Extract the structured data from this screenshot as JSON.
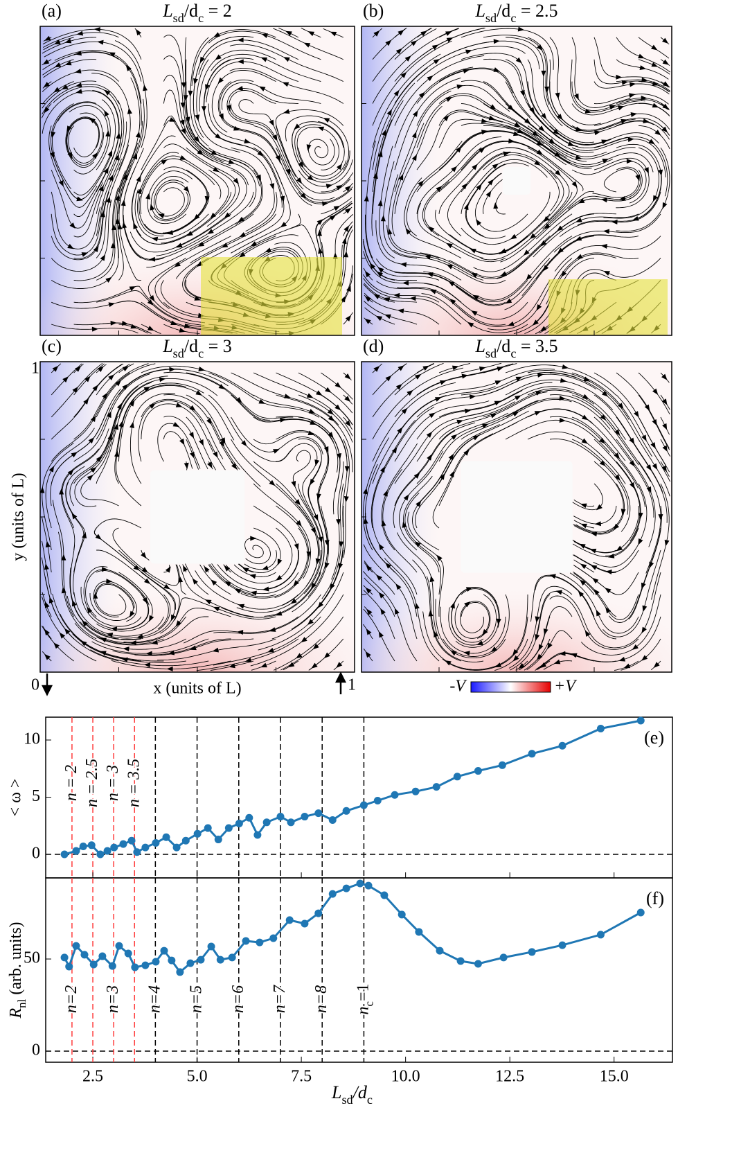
{
  "panels": [
    {
      "label": "(a)",
      "title": [
        "L",
        "sd",
        "/d",
        "c",
        " = 2"
      ],
      "highlight": true,
      "hole": 0
    },
    {
      "label": "(b)",
      "title": [
        "L",
        "sd",
        "/d",
        "c",
        " = 2.5"
      ],
      "highlight": true,
      "hole": 0.09
    },
    {
      "label": "(c)",
      "title": [
        "L",
        "sd",
        "/d",
        "c",
        " = 3"
      ],
      "highlight": false,
      "hole": 0.3
    },
    {
      "label": "(d)",
      "title": [
        "L",
        "sd",
        "/d",
        "c",
        " = 3.5"
      ],
      "highlight": false,
      "hole": 0.36
    }
  ],
  "panel_axes": {
    "y_label": "y (units of L)",
    "x_label": "x (units of L)",
    "y_top": "1",
    "origin": "0",
    "x_right": "1"
  },
  "colorbar": {
    "low": "-V",
    "high": "+V"
  },
  "chart_data": [
    {
      "type": "line",
      "panel_label": "(e)",
      "ylabel": "< ω >",
      "color": "#1f77b4",
      "x": [
        1.82,
        2.1,
        2.27,
        2.47,
        2.68,
        2.85,
        3.01,
        3.23,
        3.43,
        3.56,
        3.76,
        4.01,
        4.26,
        4.51,
        4.73,
        5.01,
        5.26,
        5.51,
        5.76,
        6.01,
        6.25,
        6.45,
        6.67,
        7.0,
        7.25,
        7.58,
        7.91,
        8.25,
        8.58,
        9.0,
        9.33,
        9.74,
        10.24,
        10.74,
        11.24,
        11.74,
        12.32,
        13.03,
        13.76,
        14.68,
        15.64
      ],
      "values": [
        0,
        0.3,
        0.7,
        0.8,
        0,
        0.3,
        0.6,
        0.9,
        1.2,
        0.2,
        0.6,
        1.0,
        1.5,
        0.6,
        1.2,
        1.8,
        2.3,
        1.3,
        2.3,
        2.7,
        3.2,
        1.7,
        2.8,
        3.3,
        2.8,
        3.3,
        3.6,
        3.0,
        3.8,
        4.3,
        4.7,
        5.2,
        5.5,
        5.9,
        6.8,
        7.3,
        7.8,
        8.8,
        9.5,
        11.0,
        11.7
      ],
      "xlim": [
        1.37,
        16.4
      ],
      "ylim": [
        -2.06,
        12
      ],
      "yticks": [
        0,
        5,
        10
      ],
      "hline": 0,
      "vlines": [
        {
          "x": 2,
          "label": "n = 2",
          "color": "#ff3b3b"
        },
        {
          "x": 2.5,
          "label": "n = 2.5",
          "color": "#ff3b3b"
        },
        {
          "x": 3,
          "label": "n = 3",
          "color": "#ff3b3b"
        },
        {
          "x": 3.5,
          "label": "n = 3.5",
          "color": "#ff3b3b"
        },
        {
          "x": 4,
          "color": "#000000"
        },
        {
          "x": 5,
          "color": "#000000"
        },
        {
          "x": 6,
          "color": "#000000"
        },
        {
          "x": 7,
          "color": "#000000"
        },
        {
          "x": 8,
          "color": "#000000"
        },
        {
          "x": 9,
          "color": "#000000"
        }
      ]
    },
    {
      "type": "line",
      "panel_label": "(f)",
      "ylabel": [
        "R",
        "nl",
        " (arb. units)"
      ],
      "xlabel": [
        "L",
        "sd",
        "/d",
        "c"
      ],
      "color": "#1f77b4",
      "x": [
        1.82,
        1.93,
        2.1,
        2.3,
        2.52,
        2.73,
        2.97,
        3.13,
        3.35,
        3.51,
        3.76,
        4.01,
        4.21,
        4.39,
        4.59,
        4.84,
        5.09,
        5.34,
        5.56,
        5.84,
        6.17,
        6.5,
        6.83,
        7.22,
        7.58,
        7.91,
        8.25,
        8.58,
        8.91,
        9.11,
        9.49,
        9.91,
        10.32,
        10.82,
        11.32,
        11.74,
        12.35,
        13.03,
        13.76,
        14.68,
        15.64
      ],
      "values": [
        50.8,
        45.9,
        57.1,
        52.3,
        47,
        51.5,
        46.2,
        57.1,
        53,
        45.5,
        46.6,
        48.5,
        54.5,
        49.2,
        42.9,
        47.7,
        49.6,
        56.8,
        49.6,
        50.8,
        59.8,
        59,
        61.3,
        71.1,
        69.2,
        74.8,
        85.3,
        88.3,
        91,
        89.8,
        84.6,
        74.1,
        64.7,
        54.5,
        48.9,
        47.4,
        50.8,
        53.8,
        57.5,
        63.2,
        75.2
      ],
      "xlim": [
        1.37,
        16.4
      ],
      "ylim": [
        -6,
        94
      ],
      "yticks": [
        0,
        50
      ],
      "xticks": [
        2.5,
        {
          "value": 5,
          "label": "5.0"
        },
        7.5,
        {
          "value": 10,
          "label": "10.0"
        },
        12.5,
        {
          "value": 15,
          "label": "15.0"
        }
      ],
      "hline": 0,
      "vlines": [
        {
          "x": 2,
          "label": "n=2",
          "color": "#ff3b3b"
        },
        {
          "x": 2.5,
          "color": "#ff3b3b"
        },
        {
          "x": 3,
          "label": "n=3",
          "color": "#ff3b3b"
        },
        {
          "x": 3.5,
          "color": "#ff3b3b"
        },
        {
          "x": 4,
          "label": "n=4",
          "color": "#000000"
        },
        {
          "x": 5,
          "label": "n=5",
          "color": "#000000"
        },
        {
          "x": 6,
          "label": "n=6",
          "color": "#000000"
        },
        {
          "x": 7,
          "label": "n=7",
          "color": "#000000"
        },
        {
          "x": 8,
          "label": "n=8",
          "color": "#000000"
        },
        {
          "x": 9,
          "label": [
            "n",
            "c",
            "=1"
          ],
          "color": "#000000"
        }
      ]
    }
  ]
}
